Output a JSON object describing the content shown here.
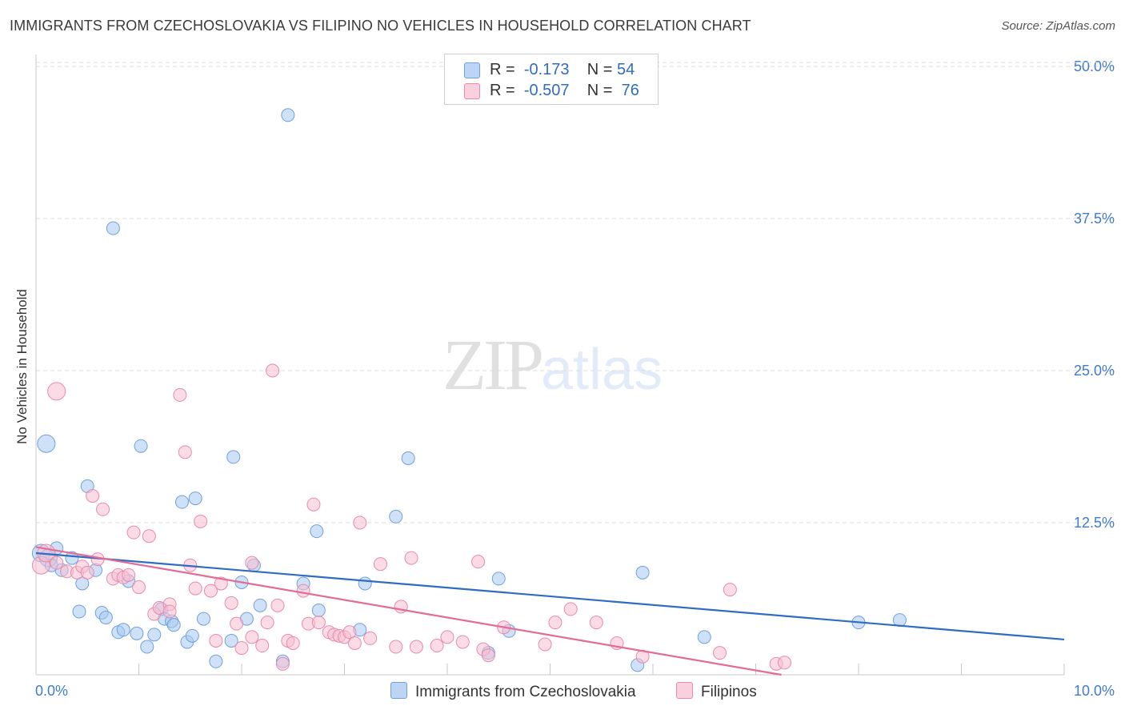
{
  "header": {
    "title": "IMMIGRANTS FROM CZECHOSLOVAKIA VS FILIPINO NO VEHICLES IN HOUSEHOLD CORRELATION CHART",
    "source": "Source: ZipAtlas.com"
  },
  "watermark": {
    "zip": "ZIP",
    "atlas": "atlas"
  },
  "legend": {
    "rows": [
      {
        "r_label": "R =",
        "r_value": "-0.173",
        "n_label": "N =",
        "n_value": "54"
      },
      {
        "r_label": "R =",
        "r_value": "-0.507",
        "n_label": "N =",
        "n_value": "76"
      }
    ]
  },
  "chart_data": {
    "type": "scatter",
    "title": "IMMIGRANTS FROM CZECHOSLOVAKIA VS FILIPINO NO VEHICLES IN HOUSEHOLD CORRELATION CHART",
    "xlabel": "",
    "ylabel": "No Vehicles in Household",
    "xlim": [
      0,
      10
    ],
    "ylim": [
      0,
      50
    ],
    "x_tick_labels": [
      "0.0%",
      "10.0%"
    ],
    "y_ticks": [
      12.5,
      25.0,
      37.5,
      50.0
    ],
    "y_tick_labels": [
      "12.5%",
      "25.0%",
      "37.5%",
      "50.0%"
    ],
    "grid": "horizontal dashed",
    "legend_position": "top-center",
    "series": [
      {
        "name": "Immigrants from Czechoslovakia",
        "color": "#a8c8f0",
        "edge_color": "#6fa0dd",
        "trend_color": "#2f6cc4",
        "trend": {
          "x": [
            0,
            10
          ],
          "y": [
            10.0,
            2.9
          ]
        },
        "points": [
          [
            0.05,
            10.0
          ],
          [
            0.1,
            19.0
          ],
          [
            0.12,
            9.6
          ],
          [
            0.15,
            9.0
          ],
          [
            0.2,
            10.4
          ],
          [
            0.25,
            8.6
          ],
          [
            0.35,
            9.6
          ],
          [
            0.45,
            7.5
          ],
          [
            0.5,
            15.5
          ],
          [
            0.58,
            8.6
          ],
          [
            0.42,
            5.2
          ],
          [
            0.64,
            5.1
          ],
          [
            0.68,
            4.7
          ],
          [
            0.75,
            36.7
          ],
          [
            0.8,
            3.5
          ],
          [
            0.85,
            3.7
          ],
          [
            0.9,
            7.7
          ],
          [
            0.98,
            3.4
          ],
          [
            1.02,
            18.8
          ],
          [
            1.08,
            2.3
          ],
          [
            1.15,
            3.3
          ],
          [
            1.22,
            5.4
          ],
          [
            1.25,
            4.6
          ],
          [
            1.32,
            4.4
          ],
          [
            1.34,
            4.1
          ],
          [
            1.42,
            14.2
          ],
          [
            1.47,
            2.7
          ],
          [
            1.52,
            3.2
          ],
          [
            1.55,
            14.5
          ],
          [
            1.63,
            4.6
          ],
          [
            1.75,
            1.1
          ],
          [
            1.9,
            2.8
          ],
          [
            1.92,
            17.9
          ],
          [
            2.0,
            7.6
          ],
          [
            2.05,
            4.6
          ],
          [
            2.12,
            9.0
          ],
          [
            2.18,
            5.7
          ],
          [
            2.45,
            46.0
          ],
          [
            2.4,
            1.1
          ],
          [
            2.6,
            7.5
          ],
          [
            2.73,
            11.8
          ],
          [
            2.75,
            5.3
          ],
          [
            3.15,
            3.7
          ],
          [
            3.2,
            7.5
          ],
          [
            3.5,
            13.0
          ],
          [
            3.62,
            17.8
          ],
          [
            4.4,
            1.8
          ],
          [
            4.5,
            7.9
          ],
          [
            4.6,
            3.6
          ],
          [
            5.85,
            0.8
          ],
          [
            5.9,
            8.4
          ],
          [
            6.5,
            3.1
          ],
          [
            8.0,
            4.3
          ],
          [
            8.4,
            4.5
          ]
        ]
      },
      {
        "name": "Filipinos",
        "color": "#f8bfd2",
        "edge_color": "#e88aaa",
        "trend_color": "#e26b98",
        "trend": {
          "x": [
            0,
            7.25
          ],
          "y": [
            10.5,
            0.0
          ]
        },
        "points": [
          [
            0.05,
            9.0
          ],
          [
            0.1,
            10.0
          ],
          [
            0.2,
            9.2
          ],
          [
            0.2,
            23.3
          ],
          [
            0.3,
            8.5
          ],
          [
            0.4,
            8.4
          ],
          [
            0.45,
            8.9
          ],
          [
            0.5,
            8.4
          ],
          [
            0.55,
            14.7
          ],
          [
            0.6,
            9.5
          ],
          [
            0.65,
            13.6
          ],
          [
            0.75,
            7.9
          ],
          [
            0.8,
            8.2
          ],
          [
            0.85,
            8.0
          ],
          [
            0.9,
            8.2
          ],
          [
            0.95,
            11.7
          ],
          [
            1.0,
            7.2
          ],
          [
            1.1,
            11.4
          ],
          [
            1.15,
            5.0
          ],
          [
            1.2,
            5.5
          ],
          [
            1.3,
            5.8
          ],
          [
            1.4,
            23.0
          ],
          [
            1.45,
            18.3
          ],
          [
            1.5,
            9.0
          ],
          [
            1.55,
            7.1
          ],
          [
            1.6,
            12.6
          ],
          [
            1.7,
            6.9
          ],
          [
            1.75,
            2.8
          ],
          [
            1.8,
            7.5
          ],
          [
            1.9,
            5.9
          ],
          [
            1.95,
            4.2
          ],
          [
            2.0,
            2.2
          ],
          [
            2.1,
            3.1
          ],
          [
            2.2,
            2.4
          ],
          [
            2.25,
            4.3
          ],
          [
            2.3,
            25.0
          ],
          [
            2.35,
            5.7
          ],
          [
            2.4,
            0.9
          ],
          [
            2.45,
            2.8
          ],
          [
            2.5,
            2.6
          ],
          [
            2.6,
            6.9
          ],
          [
            2.65,
            4.2
          ],
          [
            2.7,
            14.0
          ],
          [
            2.75,
            4.3
          ],
          [
            2.85,
            3.5
          ],
          [
            2.9,
            3.3
          ],
          [
            2.95,
            3.2
          ],
          [
            3.0,
            3.1
          ],
          [
            3.05,
            3.5
          ],
          [
            3.1,
            2.6
          ],
          [
            3.15,
            12.5
          ],
          [
            3.25,
            3.0
          ],
          [
            3.35,
            9.1
          ],
          [
            3.5,
            2.3
          ],
          [
            3.55,
            5.6
          ],
          [
            3.65,
            9.6
          ],
          [
            3.7,
            2.3
          ],
          [
            3.9,
            2.4
          ],
          [
            4.0,
            3.1
          ],
          [
            4.15,
            2.7
          ],
          [
            4.3,
            9.3
          ],
          [
            4.35,
            2.1
          ],
          [
            4.4,
            1.6
          ],
          [
            4.55,
            3.9
          ],
          [
            4.95,
            2.5
          ],
          [
            5.05,
            4.3
          ],
          [
            5.2,
            5.4
          ],
          [
            5.45,
            4.3
          ],
          [
            5.65,
            2.6
          ],
          [
            5.9,
            1.5
          ],
          [
            6.65,
            1.8
          ],
          [
            6.75,
            7.0
          ],
          [
            7.2,
            0.9
          ],
          [
            7.28,
            1.0
          ],
          [
            1.3,
            5.2
          ],
          [
            2.1,
            9.2
          ]
        ]
      }
    ]
  }
}
